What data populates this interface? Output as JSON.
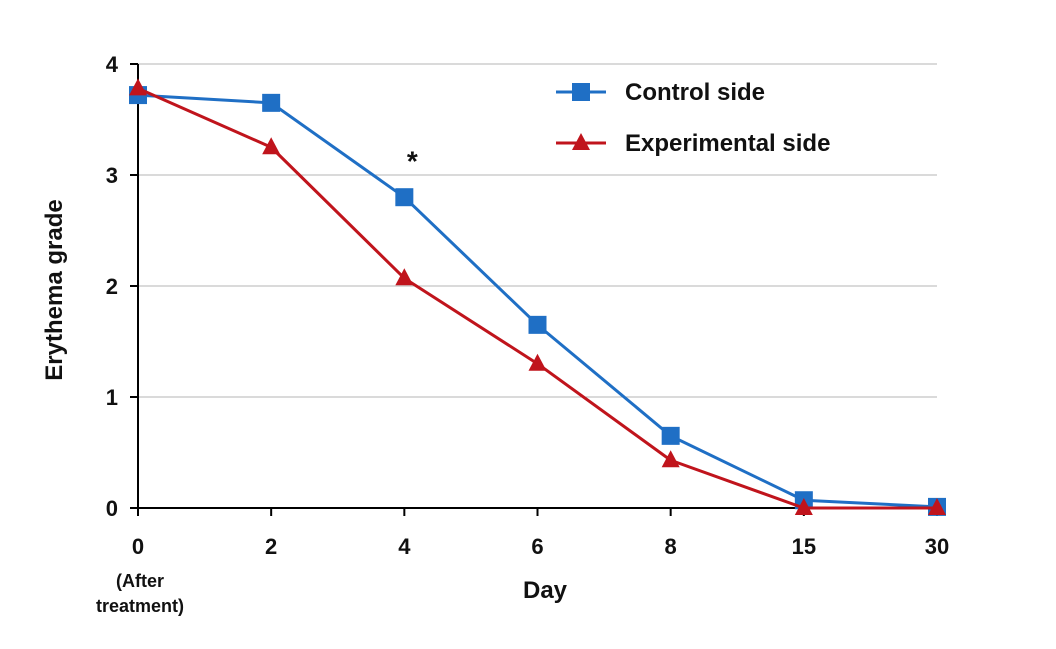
{
  "chart_data": {
    "type": "line",
    "title": "",
    "xlabel": "Day",
    "ylabel": "Erythema  grade",
    "categories": [
      "0",
      "2",
      "4",
      "6",
      "8",
      "15",
      "30"
    ],
    "category_sublabel": [
      "(After",
      "treatment)"
    ],
    "yticks": [
      "0",
      "1",
      "2",
      "3",
      "4"
    ],
    "ylim": [
      0,
      4
    ],
    "grid": true,
    "legend_position": "top-right",
    "series": [
      {
        "name": "Control side",
        "values": [
          3.72,
          3.65,
          2.8,
          1.65,
          0.65,
          0.07,
          0.01
        ],
        "color": "#1f6fc5",
        "marker": "square"
      },
      {
        "name": "Experimental side",
        "values": [
          3.78,
          3.25,
          2.07,
          1.3,
          0.43,
          0.0,
          0.0
        ],
        "color": "#c0141c",
        "marker": "triangle"
      }
    ],
    "annotations": [
      {
        "text": "*",
        "category": "4",
        "value": 3.15
      }
    ]
  }
}
